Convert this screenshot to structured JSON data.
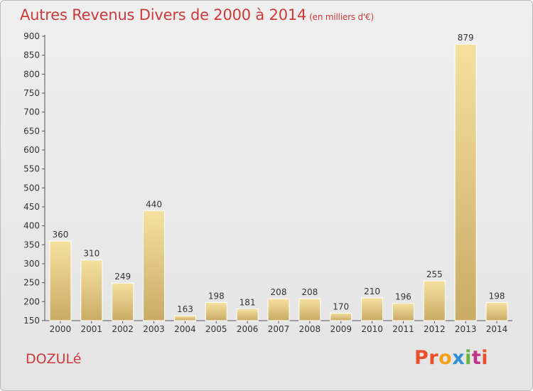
{
  "header": {
    "title": "Autres Revenus Divers de 2000 à 2014",
    "subtitle": "(en milliers d'€)"
  },
  "footer": {
    "town": "DOZULé",
    "brand": [
      "P",
      "r",
      "o",
      "x",
      "i",
      "t",
      "i"
    ],
    "brand_colors": [
      "#e94f2b",
      "#e94f2b",
      "#f4a11c",
      "#2d8fd6",
      "#6ab43e",
      "#c2368a",
      "#e94f2b"
    ]
  },
  "colors": {
    "bar_light": "#f6e1a0",
    "bar_dark": "#c9ab64",
    "text": "#333333",
    "axis": "#555555",
    "title": "#cc3a3a"
  },
  "chart_data": {
    "type": "bar",
    "title": "Autres Revenus Divers de 2000 à 2014",
    "subtitle": "(en milliers d'€)",
    "categories": [
      "2000",
      "2001",
      "2002",
      "2003",
      "2004",
      "2005",
      "2006",
      "2007",
      "2008",
      "2009",
      "2010",
      "2011",
      "2012",
      "2013",
      "2014"
    ],
    "values": [
      360,
      310,
      249,
      440,
      163,
      198,
      181,
      208,
      208,
      170,
      210,
      196,
      255,
      879,
      198
    ],
    "ylim": [
      150,
      900
    ],
    "yticks": [
      150,
      200,
      250,
      300,
      350,
      400,
      450,
      500,
      550,
      600,
      650,
      700,
      750,
      800,
      850,
      900
    ],
    "grid": false,
    "legend": "none"
  }
}
